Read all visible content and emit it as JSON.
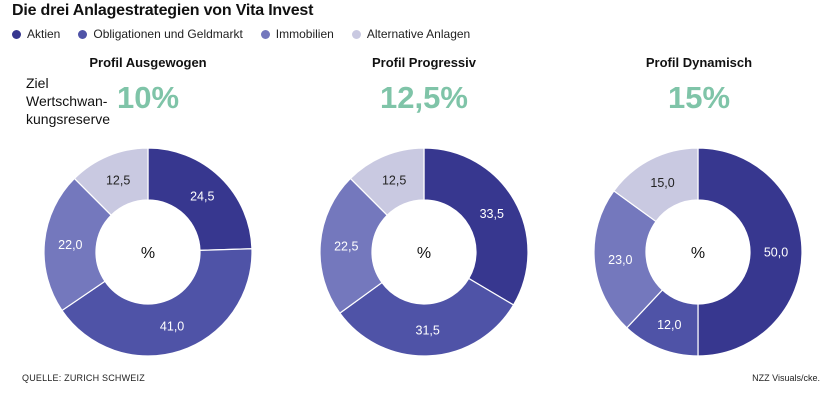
{
  "title": "Die drei Anlagestrategien von Vita Invest",
  "legend": [
    {
      "label": "Aktien",
      "color": "#37378f"
    },
    {
      "label": "Obligationen und Geldmarkt",
      "color": "#4f53a7"
    },
    {
      "label": "Immobilien",
      "color": "#7478bd"
    },
    {
      "label": "Alternative Anlagen",
      "color": "#c9c9e1"
    }
  ],
  "ziel_label": [
    "Ziel",
    "Wertschwan-",
    "kungsreserve"
  ],
  "center_label": "%",
  "source": "QUELLE: ZURICH SCHWEIZ",
  "credit": "NZZ Visuals/cke.",
  "chart_data": [
    {
      "type": "pie",
      "title": "Profil Ausgewogen",
      "target": "10%",
      "categories": [
        "Aktien",
        "Obligationen und Geldmarkt",
        "Immobilien",
        "Alternative Anlagen"
      ],
      "values": [
        24.5,
        41.0,
        22.0,
        12.5
      ],
      "labels": [
        "24,5",
        "41,0",
        "22,0",
        "12,5"
      ]
    },
    {
      "type": "pie",
      "title": "Profil Progressiv",
      "target": "12,5%",
      "categories": [
        "Aktien",
        "Obligationen und Geldmarkt",
        "Immobilien",
        "Alternative Anlagen"
      ],
      "values": [
        33.5,
        31.5,
        22.5,
        12.5
      ],
      "labels": [
        "33,5",
        "31,5",
        "22,5",
        "12,5"
      ]
    },
    {
      "type": "pie",
      "title": "Profil Dynamisch",
      "target": "15%",
      "categories": [
        "Aktien",
        "Obligationen und Geldmarkt",
        "Immobilien",
        "Alternative Anlagen"
      ],
      "values": [
        50.0,
        12.0,
        23.0,
        15.0
      ],
      "labels": [
        "50,0",
        "12,0",
        "23,0",
        "15,0"
      ]
    }
  ]
}
